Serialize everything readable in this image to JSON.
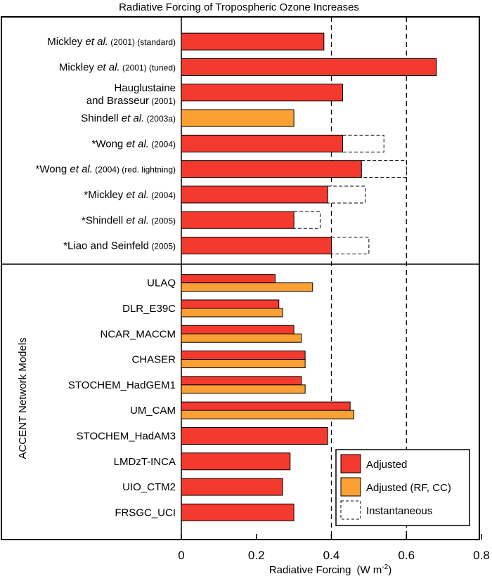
{
  "chart_data": {
    "type": "bar",
    "orientation": "horizontal",
    "title": "Radiative Forcing of Tropospheric Ozone Increases",
    "xlabel": "Radiative Forcing",
    "xlabel_unit": "(W m",
    "xlabel_unit_sup": "-2",
    "xlabel_unit_close": ")",
    "xlim": [
      0,
      0.8
    ],
    "xticks": [
      "0",
      "0.2",
      "0.4",
      "0.6",
      "0.8"
    ],
    "reference_lines": [
      0.4,
      0.6
    ],
    "group_label": "ACCENT Network Models",
    "colors": {
      "adjusted": "#f43a2e",
      "adjusted_rf_cc": "#fba033",
      "instantaneous": "#ffffff"
    },
    "legend": {
      "position": "bottom-right",
      "entries": [
        {
          "key": "adjusted",
          "label": "Adjusted"
        },
        {
          "key": "adjusted_rf_cc",
          "label": "Adjusted (RF, CC)"
        },
        {
          "key": "instantaneous",
          "label": "Instantaneous"
        }
      ]
    },
    "studies": [
      {
        "parts": [
          [
            "Mickley ",
            "n"
          ],
          [
            "et al.",
            "i"
          ],
          [
            " (2001) (standard)",
            "s"
          ]
        ],
        "bars": [
          {
            "key": "adjusted",
            "value": 0.38
          }
        ]
      },
      {
        "parts": [
          [
            "Mickley ",
            "n"
          ],
          [
            "et al.",
            "i"
          ],
          [
            " (2001) (tuned)",
            "s"
          ]
        ],
        "bars": [
          {
            "key": "adjusted",
            "value": 0.68
          }
        ]
      },
      {
        "lines": [
          [
            [
              "Hauglustaine",
              "n"
            ]
          ],
          [
            [
              "and Brasseur",
              "n"
            ],
            [
              " (2001)",
              "s"
            ]
          ]
        ],
        "bars": [
          {
            "key": "adjusted",
            "value": 0.43
          }
        ]
      },
      {
        "parts": [
          [
            "Shindell ",
            "n"
          ],
          [
            "et al.",
            "i"
          ],
          [
            " (2003a)",
            "s"
          ]
        ],
        "bars": [
          {
            "key": "adjusted_rf_cc",
            "value": 0.3
          }
        ]
      },
      {
        "parts": [
          [
            "*Wong ",
            "n"
          ],
          [
            "et al.",
            "i"
          ],
          [
            " (2004)",
            "s"
          ]
        ],
        "bars": [
          {
            "key": "adjusted",
            "value": 0.43
          }
        ],
        "instantaneous": 0.54
      },
      {
        "parts": [
          [
            "*Wong ",
            "n"
          ],
          [
            "et al.",
            "i"
          ],
          [
            " (2004) (red. lightning)",
            "s"
          ]
        ],
        "bars": [
          {
            "key": "adjusted",
            "value": 0.48
          }
        ],
        "instantaneous": 0.6
      },
      {
        "parts": [
          [
            "*Mickley ",
            "n"
          ],
          [
            "et al.",
            "i"
          ],
          [
            " (2004)",
            "s"
          ]
        ],
        "bars": [
          {
            "key": "adjusted",
            "value": 0.39
          }
        ],
        "instantaneous": 0.49
      },
      {
        "parts": [
          [
            "*Shindell ",
            "n"
          ],
          [
            "et al.",
            "i"
          ],
          [
            " (2005)",
            "s"
          ]
        ],
        "bars": [
          {
            "key": "adjusted",
            "value": 0.3
          }
        ],
        "instantaneous": 0.37
      },
      {
        "parts": [
          [
            "*Liao and Seinfeld",
            "n"
          ],
          [
            " (2005)",
            "s"
          ]
        ],
        "bars": [
          {
            "key": "adjusted",
            "value": 0.4
          }
        ],
        "instantaneous": 0.5
      }
    ],
    "models": [
      {
        "label": "ULAQ",
        "bars": [
          {
            "key": "adjusted",
            "value": 0.25
          },
          {
            "key": "adjusted_rf_cc",
            "value": 0.35
          }
        ]
      },
      {
        "label": "DLR_E39C",
        "bars": [
          {
            "key": "adjusted",
            "value": 0.26
          },
          {
            "key": "adjusted_rf_cc",
            "value": 0.27
          }
        ]
      },
      {
        "label": "NCAR_MACCM",
        "bars": [
          {
            "key": "adjusted",
            "value": 0.3
          },
          {
            "key": "adjusted_rf_cc",
            "value": 0.32
          }
        ]
      },
      {
        "label": "CHASER",
        "bars": [
          {
            "key": "adjusted",
            "value": 0.33
          },
          {
            "key": "adjusted_rf_cc",
            "value": 0.33
          }
        ]
      },
      {
        "label": "STOCHEM_HadGEM1",
        "bars": [
          {
            "key": "adjusted",
            "value": 0.32
          },
          {
            "key": "adjusted_rf_cc",
            "value": 0.33
          }
        ]
      },
      {
        "label": "UM_CAM",
        "bars": [
          {
            "key": "adjusted",
            "value": 0.45
          },
          {
            "key": "adjusted_rf_cc",
            "value": 0.46
          }
        ]
      },
      {
        "label": "STOCHEM_HadAM3",
        "bars": [
          {
            "key": "adjusted",
            "value": 0.39
          }
        ]
      },
      {
        "label": "LMDzT-INCA",
        "bars": [
          {
            "key": "adjusted",
            "value": 0.29
          }
        ]
      },
      {
        "label": "UIO_CTM2",
        "bars": [
          {
            "key": "adjusted",
            "value": 0.27
          }
        ]
      },
      {
        "label": "FRSGC_UCI",
        "bars": [
          {
            "key": "adjusted",
            "value": 0.3
          }
        ]
      }
    ]
  }
}
